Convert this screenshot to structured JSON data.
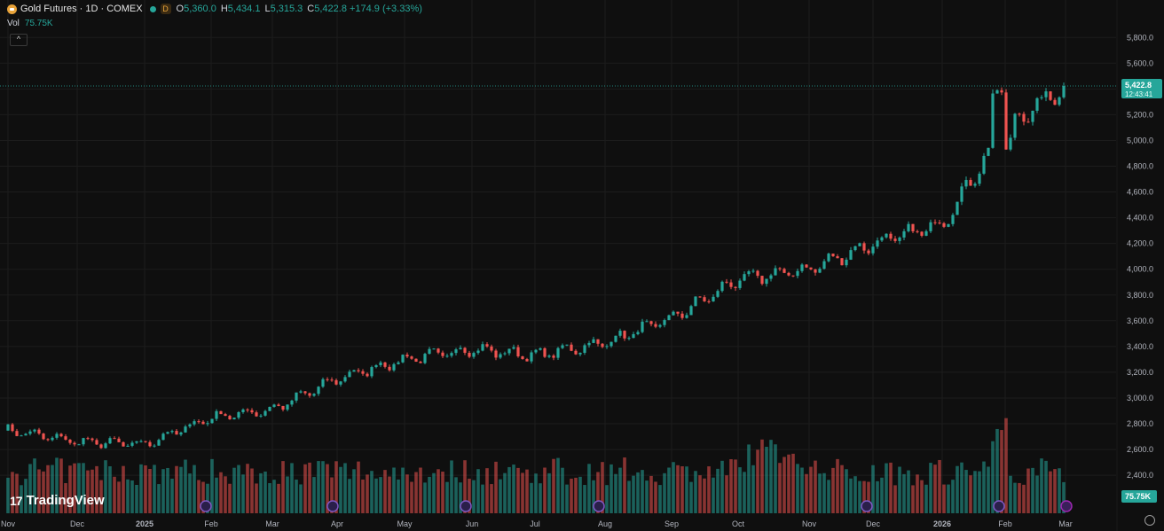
{
  "header": {
    "title": "Gold Futures · 1D · COMEX",
    "interval_badge": "D",
    "ohlc": [
      {
        "k": "O",
        "v": "5,360.0"
      },
      {
        "k": "H",
        "v": "5,434.1"
      },
      {
        "k": "L",
        "v": "5,315.3"
      },
      {
        "k": "C",
        "v": "5,422.8"
      }
    ],
    "change": "+174.9 (+3.33%)"
  },
  "volume": {
    "label": "Vol",
    "value": "75.75K"
  },
  "logo_text": "TradingView",
  "colors": {
    "up": "#26a69a",
    "down": "#ef5350",
    "bg": "#0f0f0f",
    "grid": "#1c1c1c",
    "axis_text": "#b2b5be"
  },
  "chart_data": {
    "type": "candlestick",
    "title": "",
    "price_axis": {
      "ticks": [
        "2,400.0",
        "2,600.0",
        "2,800.0",
        "3,000.0",
        "3,200.0",
        "3,400.0",
        "3,600.0",
        "3,800.0",
        "4,000.0",
        "4,200.0",
        "4,400.0",
        "4,600.0",
        "4,800.0",
        "5,000.0",
        "5,200.0",
        "5,400.0",
        "5,600.0",
        "5,800.0"
      ],
      "range": [
        2270,
        5905
      ]
    },
    "time_axis": {
      "ticks": [
        "Nov",
        "Dec",
        "2025",
        "Feb",
        "Mar",
        "Apr",
        "May",
        "Jun",
        "Jul",
        "Aug",
        "Sep",
        "Oct",
        "Nov",
        "Dec",
        "2026",
        "Feb",
        "Mar"
      ]
    },
    "last_price": {
      "value": "5,422.8",
      "countdown": "12:43:41"
    },
    "volume_label": "75.75K",
    "price_path": [
      {
        "d": "Nov",
        "p": 2750
      },
      {
        "d": "Dec",
        "p": 2660
      },
      {
        "d": "2025",
        "p": 2640
      },
      {
        "d": "Feb",
        "p": 2850
      },
      {
        "d": "Mar",
        "p": 2910
      },
      {
        "d": "Apr",
        "p": 3150
      },
      {
        "d": "May",
        "p": 3300
      },
      {
        "d": "Jun",
        "p": 3380
      },
      {
        "d": "Jul",
        "p": 3330
      },
      {
        "d": "Aug",
        "p": 3430
      },
      {
        "d": "Sep",
        "p": 3620
      },
      {
        "d": "Oct",
        "p": 3920
      },
      {
        "d": "Nov",
        "p": 4000
      },
      {
        "d": "Dec",
        "p": 4200
      },
      {
        "d": "2026",
        "p": 4350
      },
      {
        "d": "Feb",
        "p": 5100
      },
      {
        "d": "Mar",
        "p": 5422.8
      }
    ]
  }
}
